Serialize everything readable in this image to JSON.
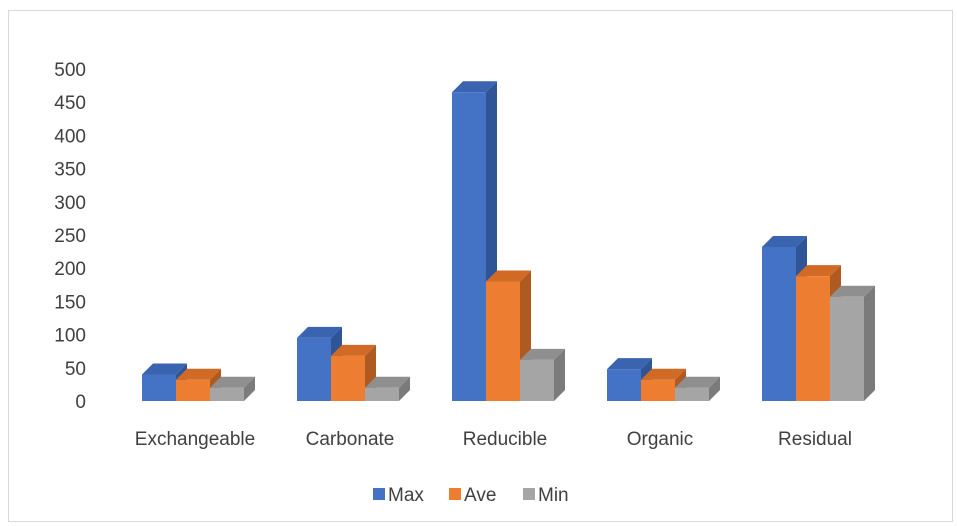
{
  "chart_data": {
    "type": "bar",
    "style": "3d-clustered-column",
    "categories": [
      "Exchangeable",
      "Carbonate",
      "Reducible",
      "Organic",
      "Residual"
    ],
    "series": [
      {
        "name": "Max",
        "color": "#4472c4",
        "side": "#2f5597",
        "top": "#3a64b0",
        "values": [
          40,
          95,
          465,
          48,
          232
        ]
      },
      {
        "name": "Ave",
        "color": "#ed7d31",
        "side": "#ae5a21",
        "top": "#d06a25",
        "values": [
          32,
          68,
          180,
          32,
          188
        ]
      },
      {
        "name": "Min",
        "color": "#a5a5a5",
        "side": "#7b7b7b",
        "top": "#8f8f8f",
        "values": [
          20,
          20,
          62,
          20,
          157
        ]
      }
    ],
    "yticks": [
      0,
      50,
      100,
      150,
      200,
      250,
      300,
      350,
      400,
      450,
      500
    ],
    "ylim": [
      0,
      500
    ],
    "grid": false,
    "legend_position": "bottom"
  }
}
